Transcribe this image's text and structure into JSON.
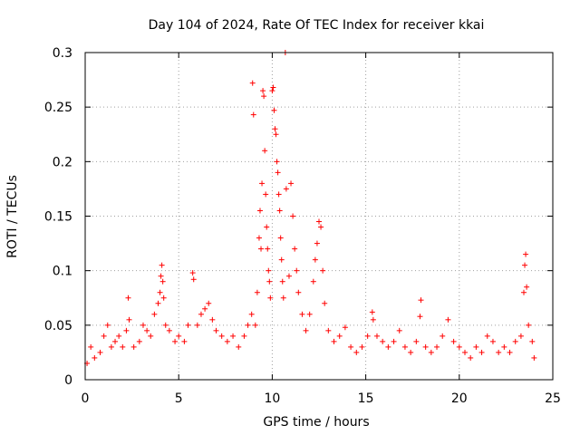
{
  "chart_data": {
    "type": "scatter",
    "title": "Day 104 of 2024, Rate Of TEC Index for receiver kkai",
    "xlabel": "GPS time / hours",
    "ylabel": "ROTI / TECUs",
    "xlim": [
      0,
      25
    ],
    "ylim": [
      0,
      0.3
    ],
    "xticks": [
      0,
      5,
      10,
      15,
      20,
      25
    ],
    "xtick_labels": [
      "0",
      "5",
      "10",
      "15",
      "20",
      "25"
    ],
    "yticks": [
      0,
      0.05,
      0.1,
      0.15,
      0.2,
      0.25,
      0.3
    ],
    "ytick_labels": [
      "0",
      "0.05",
      "0.1",
      "0.15",
      "0.2",
      "0.25",
      "0.3"
    ],
    "grid": true,
    "marker": "+",
    "color": "#ff0000",
    "series": [
      {
        "name": "ROTI",
        "points": [
          [
            0.1,
            0.015
          ],
          [
            0.3,
            0.03
          ],
          [
            0.5,
            0.02
          ],
          [
            0.8,
            0.025
          ],
          [
            1.0,
            0.04
          ],
          [
            1.2,
            0.05
          ],
          [
            1.4,
            0.03
          ],
          [
            1.6,
            0.035
          ],
          [
            1.8,
            0.04
          ],
          [
            2.0,
            0.03
          ],
          [
            2.2,
            0.045
          ],
          [
            2.3,
            0.075
          ],
          [
            2.35,
            0.055
          ],
          [
            2.6,
            0.03
          ],
          [
            2.9,
            0.035
          ],
          [
            3.1,
            0.05
          ],
          [
            3.3,
            0.045
          ],
          [
            3.5,
            0.04
          ],
          [
            3.7,
            0.06
          ],
          [
            3.9,
            0.07
          ],
          [
            4.0,
            0.08
          ],
          [
            4.05,
            0.095
          ],
          [
            4.1,
            0.105
          ],
          [
            4.15,
            0.09
          ],
          [
            4.2,
            0.075
          ],
          [
            4.3,
            0.05
          ],
          [
            4.5,
            0.045
          ],
          [
            4.8,
            0.035
          ],
          [
            5.0,
            0.04
          ],
          [
            5.3,
            0.035
          ],
          [
            5.5,
            0.05
          ],
          [
            5.75,
            0.098
          ],
          [
            5.8,
            0.092
          ],
          [
            6.0,
            0.05
          ],
          [
            6.2,
            0.06
          ],
          [
            6.4,
            0.065
          ],
          [
            6.6,
            0.07
          ],
          [
            6.8,
            0.055
          ],
          [
            7.0,
            0.045
          ],
          [
            7.3,
            0.04
          ],
          [
            7.6,
            0.035
          ],
          [
            7.9,
            0.04
          ],
          [
            8.2,
            0.03
          ],
          [
            8.5,
            0.04
          ],
          [
            8.7,
            0.05
          ],
          [
            8.9,
            0.06
          ],
          [
            8.95,
            0.272
          ],
          [
            9.0,
            0.243
          ],
          [
            9.1,
            0.05
          ],
          [
            9.2,
            0.08
          ],
          [
            9.3,
            0.13
          ],
          [
            9.35,
            0.155
          ],
          [
            9.4,
            0.12
          ],
          [
            9.45,
            0.18
          ],
          [
            9.5,
            0.265
          ],
          [
            9.55,
            0.26
          ],
          [
            9.6,
            0.21
          ],
          [
            9.65,
            0.17
          ],
          [
            9.7,
            0.14
          ],
          [
            9.75,
            0.12
          ],
          [
            9.8,
            0.1
          ],
          [
            9.85,
            0.09
          ],
          [
            9.9,
            0.075
          ],
          [
            10.0,
            0.265
          ],
          [
            10.05,
            0.268
          ],
          [
            10.1,
            0.247
          ],
          [
            10.15,
            0.23
          ],
          [
            10.2,
            0.225
          ],
          [
            10.25,
            0.2
          ],
          [
            10.3,
            0.19
          ],
          [
            10.35,
            0.17
          ],
          [
            10.4,
            0.155
          ],
          [
            10.45,
            0.13
          ],
          [
            10.5,
            0.11
          ],
          [
            10.55,
            0.09
          ],
          [
            10.6,
            0.075
          ],
          [
            10.7,
            0.3
          ],
          [
            10.75,
            0.175
          ],
          [
            10.9,
            0.095
          ],
          [
            11.0,
            0.18
          ],
          [
            11.1,
            0.15
          ],
          [
            11.2,
            0.12
          ],
          [
            11.3,
            0.1
          ],
          [
            11.4,
            0.08
          ],
          [
            11.6,
            0.06
          ],
          [
            11.8,
            0.045
          ],
          [
            12.0,
            0.06
          ],
          [
            12.2,
            0.09
          ],
          [
            12.3,
            0.11
          ],
          [
            12.4,
            0.125
          ],
          [
            12.5,
            0.145
          ],
          [
            12.6,
            0.14
          ],
          [
            12.7,
            0.1
          ],
          [
            12.8,
            0.07
          ],
          [
            13.0,
            0.045
          ],
          [
            13.3,
            0.035
          ],
          [
            13.6,
            0.04
          ],
          [
            13.9,
            0.048
          ],
          [
            14.2,
            0.03
          ],
          [
            14.5,
            0.025
          ],
          [
            14.8,
            0.03
          ],
          [
            15.1,
            0.04
          ],
          [
            15.35,
            0.062
          ],
          [
            15.4,
            0.055
          ],
          [
            15.6,
            0.04
          ],
          [
            15.9,
            0.035
          ],
          [
            16.2,
            0.03
          ],
          [
            16.5,
            0.035
          ],
          [
            16.8,
            0.045
          ],
          [
            17.1,
            0.03
          ],
          [
            17.4,
            0.025
          ],
          [
            17.7,
            0.035
          ],
          [
            17.9,
            0.058
          ],
          [
            17.95,
            0.073
          ],
          [
            18.2,
            0.03
          ],
          [
            18.5,
            0.025
          ],
          [
            18.8,
            0.03
          ],
          [
            19.1,
            0.04
          ],
          [
            19.4,
            0.055
          ],
          [
            19.7,
            0.035
          ],
          [
            20.0,
            0.03
          ],
          [
            20.3,
            0.025
          ],
          [
            20.6,
            0.02
          ],
          [
            20.9,
            0.03
          ],
          [
            21.2,
            0.025
          ],
          [
            21.5,
            0.04
          ],
          [
            21.8,
            0.035
          ],
          [
            22.1,
            0.025
          ],
          [
            22.4,
            0.03
          ],
          [
            22.7,
            0.025
          ],
          [
            23.0,
            0.035
          ],
          [
            23.3,
            0.04
          ],
          [
            23.45,
            0.08
          ],
          [
            23.5,
            0.105
          ],
          [
            23.55,
            0.115
          ],
          [
            23.6,
            0.085
          ],
          [
            23.7,
            0.05
          ],
          [
            23.9,
            0.035
          ],
          [
            24.0,
            0.02
          ]
        ]
      }
    ]
  }
}
